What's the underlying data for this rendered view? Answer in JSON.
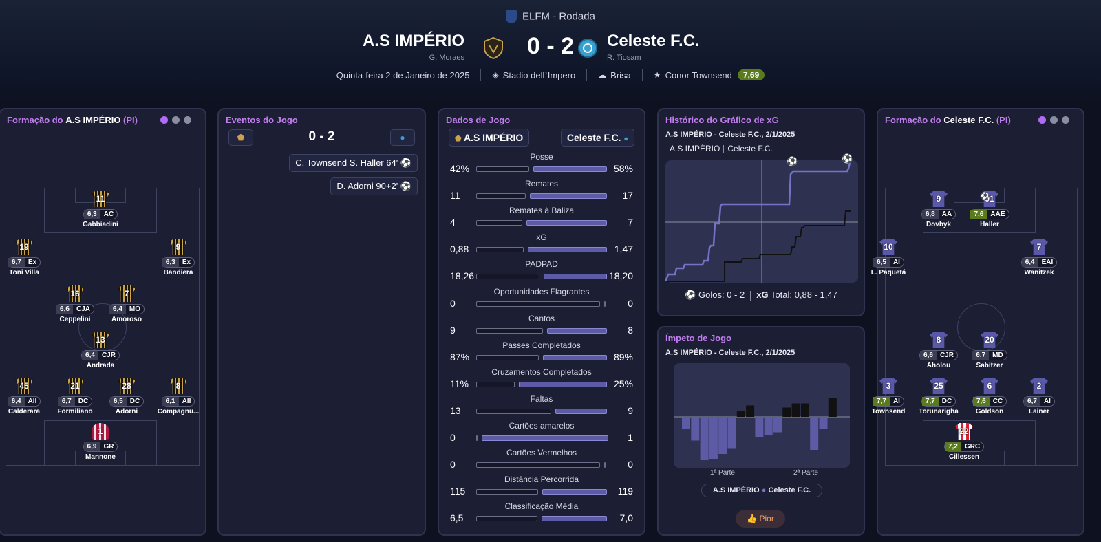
{
  "header": {
    "competition": "ELFM - Rodada",
    "home_team": "A.S IMPÉRIO",
    "home_manager": "G. Moraes",
    "away_team": "Celeste F.C.",
    "away_manager": "R. Tiosam",
    "score": "0 - 2",
    "date": "Quinta-feira 2 de Janeiro de 2025",
    "stadium": "Stadio dell`Impero",
    "weather": "Brisa",
    "motm_name": "Conor Townsend",
    "motm_rating": "7,69"
  },
  "home_lineup": {
    "title_prefix": "Formação do ",
    "team": "A.S IMPÉRIO",
    "suffix": " (PI)",
    "players": [
      {
        "num": "11",
        "rating": "6,3",
        "pos": "AC",
        "name": "Gabbiadini"
      },
      {
        "num": "19",
        "rating": "6,7",
        "pos": "Ex",
        "name": "Toni Villa"
      },
      {
        "num": "9",
        "rating": "6,3",
        "pos": "Ex",
        "name": "Bandiera"
      },
      {
        "num": "16",
        "rating": "6,6",
        "pos": "CJA",
        "name": "Ceppelini"
      },
      {
        "num": "7",
        "rating": "6,4",
        "pos": "MO",
        "name": "Amoroso"
      },
      {
        "num": "13",
        "rating": "6,4",
        "pos": "CJR",
        "name": "Andrada"
      },
      {
        "num": "45",
        "rating": "6,4",
        "pos": "AlI",
        "name": "Calderara"
      },
      {
        "num": "21",
        "rating": "6,7",
        "pos": "DC",
        "name": "Formiliano"
      },
      {
        "num": "28",
        "rating": "6,5",
        "pos": "DC",
        "name": "Adorni"
      },
      {
        "num": "8",
        "rating": "6,1",
        "pos": "AlI",
        "name": "Compagnu..."
      },
      {
        "num": "1",
        "rating": "6,9",
        "pos": "GR",
        "name": "Mannone"
      }
    ]
  },
  "away_lineup": {
    "title_prefix": "Formação do ",
    "team": "Celeste F.C.",
    "suffix": " (PI)",
    "players": [
      {
        "num": "9",
        "rating": "6,8",
        "pos": "AA",
        "name": "Dovbyk"
      },
      {
        "num": "91",
        "rating": "7,6",
        "pos": "AAE",
        "name": "Haller"
      },
      {
        "num": "10",
        "rating": "6,5",
        "pos": "AI",
        "name": "L. Paquetá"
      },
      {
        "num": "7",
        "rating": "6,4",
        "pos": "EAI",
        "name": "Wanitzek"
      },
      {
        "num": "8",
        "rating": "6,6",
        "pos": "CJR",
        "name": "Aholou"
      },
      {
        "num": "20",
        "rating": "6,7",
        "pos": "MD",
        "name": "Sabitzer"
      },
      {
        "num": "3",
        "rating": "7,7",
        "pos": "AI",
        "name": "Townsend"
      },
      {
        "num": "25",
        "rating": "7,7",
        "pos": "DC",
        "name": "Torunarigha"
      },
      {
        "num": "6",
        "rating": "7,6",
        "pos": "CC",
        "name": "Goldson"
      },
      {
        "num": "2",
        "rating": "6,7",
        "pos": "AI",
        "name": "Lainer"
      },
      {
        "num": "22",
        "rating": "7,2",
        "pos": "GRC",
        "name": "Cillessen"
      }
    ]
  },
  "events": {
    "title": "Eventos do Jogo",
    "score": "0 - 2",
    "items": [
      {
        "text": "C. Townsend  S. Haller  64'"
      },
      {
        "text": "D. Adorni  90+2'"
      }
    ]
  },
  "stats": {
    "title": "Dados de Jogo",
    "home": "A.S IMPÉRIO",
    "away": "Celeste F.C.",
    "rows": [
      {
        "label": "Posse",
        "home": "42%",
        "away": "58%",
        "h": 42,
        "a": 58
      },
      {
        "label": "Remates",
        "home": "11",
        "away": "17",
        "h": 11,
        "a": 17
      },
      {
        "label": "Remates à Baliza",
        "home": "4",
        "away": "7",
        "h": 4,
        "a": 7
      },
      {
        "label": "xG",
        "home": "0,88",
        "away": "1,47",
        "h": 0.88,
        "a": 1.47
      },
      {
        "label": "PADPAD",
        "home": "18,26",
        "away": "18,20",
        "h": 18.26,
        "a": 18.2
      },
      {
        "label": "Oportunidades Flagrantes",
        "home": "0",
        "away": "0",
        "h": 0,
        "a": 0
      },
      {
        "label": "Cantos",
        "home": "9",
        "away": "8",
        "h": 9,
        "a": 8
      },
      {
        "label": "Passes Completados",
        "home": "87%",
        "away": "89%",
        "h": 87,
        "a": 89
      },
      {
        "label": "Cruzamentos Completados",
        "home": "11%",
        "away": "25%",
        "h": 11,
        "a": 25
      },
      {
        "label": "Faltas",
        "home": "13",
        "away": "9",
        "h": 13,
        "a": 9
      },
      {
        "label": "Cartões amarelos",
        "home": "0",
        "away": "1",
        "h": 0,
        "a": 1
      },
      {
        "label": "Cartões Vermelhos",
        "home": "0",
        "away": "0",
        "h": 0,
        "a": 0
      },
      {
        "label": "Distância Percorrida",
        "home": "115",
        "away": "119",
        "h": 115,
        "a": 119
      },
      {
        "label": "Classificação Média",
        "home": "6,5",
        "away": "7,0",
        "h": 6.5,
        "a": 7.0
      }
    ]
  },
  "xg": {
    "title": "Histórico do Gráfico de xG",
    "subtitle": "A.S IMPÉRIO - Celeste F.C., 2/1/2025",
    "legend_home": "A.S IMPÉRIO",
    "legend_away": "Celeste F.C.",
    "goals_label": "Golos: 0 - 2",
    "xg_label": "xG",
    "total_label": "Total: 0,88 - 1,47"
  },
  "momentum": {
    "title": "Ímpeto de Jogo",
    "subtitle": "A.S IMPÉRIO - Celeste F.C., 2/1/2025",
    "half1": "1ª Parte",
    "half2": "2ª Parte",
    "legend_home": "A.S IMPÉRIO",
    "legend_away": "Celeste F.C.",
    "button": "Pior",
    "values": [
      -1.2,
      -2.3,
      -4.2,
      -4.1,
      -3.6,
      -3.1,
      0.6,
      1.1,
      -2.0,
      -1.8,
      -1.5,
      0.9,
      1.3,
      1.3,
      -3.2,
      -1.2,
      1.8
    ]
  },
  "colors": {
    "accent": "#b06cf5",
    "home_bar": "#151728",
    "away_bar": "#5d5ba6",
    "good_rating": "#5a7a1e"
  }
}
